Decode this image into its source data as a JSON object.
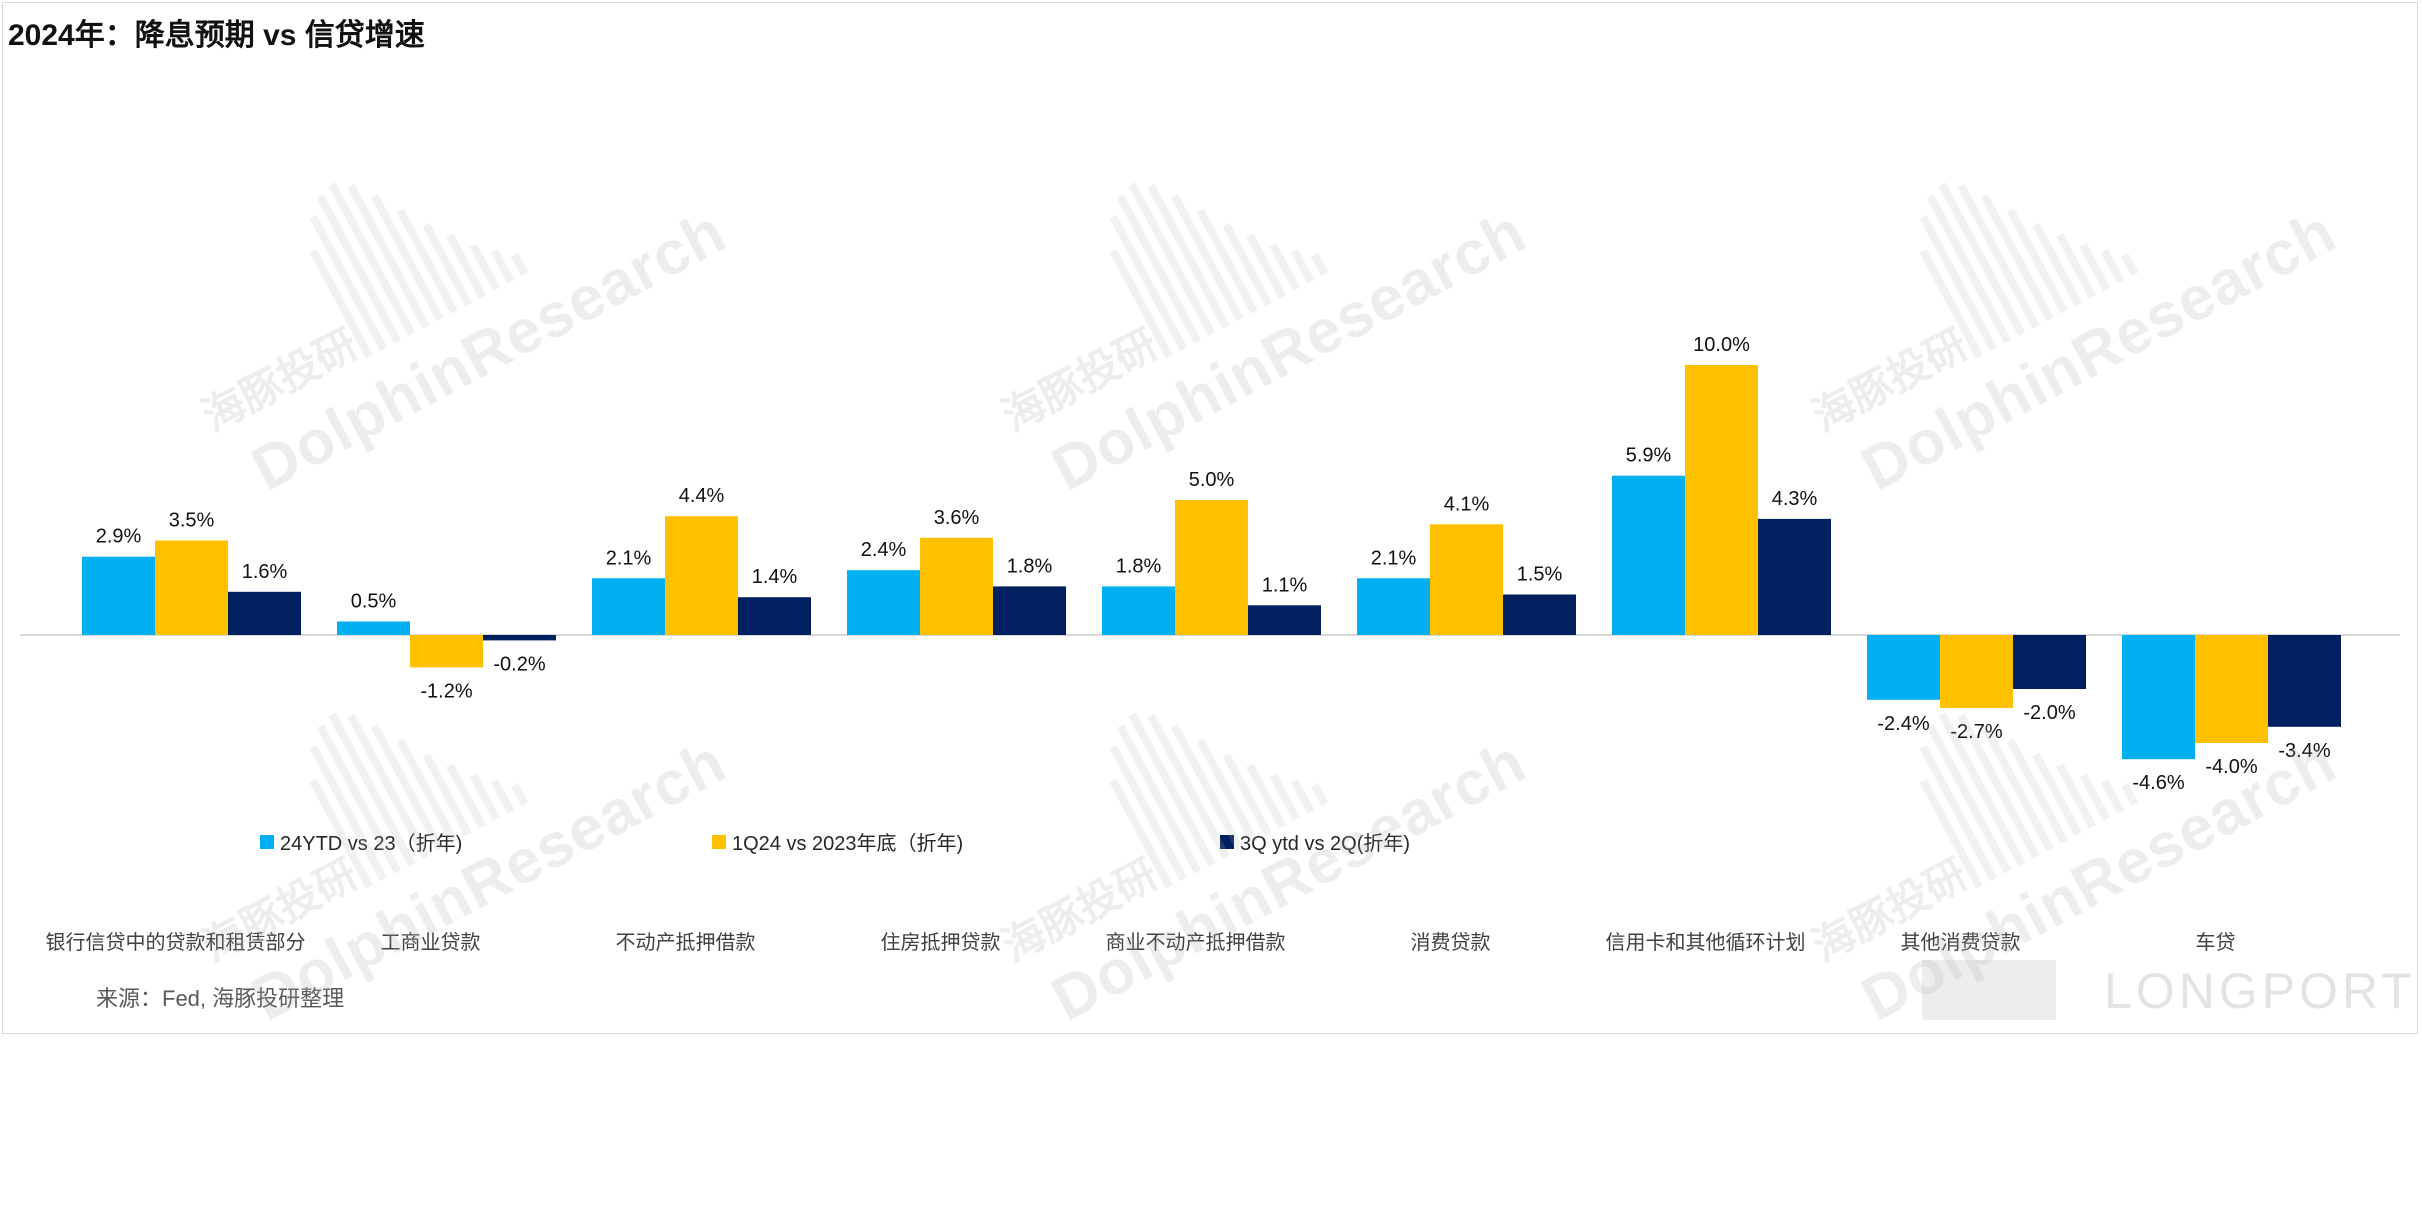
{
  "title": "2024年：降息预期 vs 信贷增速",
  "source": "来源：Fed, 海豚投研整理",
  "watermark": {
    "en": "DolphinResearch",
    "cn": "海豚投研",
    "brand": "LONGPORT"
  },
  "colors": {
    "series_1": "#00b0f0",
    "series_2": "#ffc000",
    "series_3": "#002060",
    "axis": "#d9d9d9"
  },
  "chart_data": {
    "type": "bar",
    "categories": [
      "银行信贷中的贷款和租赁部分",
      "工商业贷款",
      "不动产抵押借款",
      "住房抵押贷款",
      "商业不动产抵押借款",
      "消费贷款",
      "信用卡和其他循环计划",
      "其他消费贷款",
      "车贷"
    ],
    "series": [
      {
        "name": "24YTD vs 23（折年)",
        "values": [
          2.9,
          0.5,
          2.1,
          2.4,
          1.8,
          2.1,
          5.9,
          -2.4,
          -4.6
        ]
      },
      {
        "name": "1Q24 vs 2023年底（折年)",
        "values": [
          3.5,
          -1.2,
          4.4,
          3.6,
          5.0,
          4.1,
          10.0,
          -2.7,
          -4.0
        ]
      },
      {
        "name": "3Q ytd vs 2Q(折年)",
        "values": [
          1.6,
          -0.2,
          1.4,
          1.8,
          1.1,
          1.5,
          4.3,
          -2.0,
          -3.4
        ]
      }
    ],
    "unit": "%",
    "ylim": [
      -5.5,
      11
    ],
    "data_labels": true,
    "legend_position": "bottom-left",
    "grid": false
  }
}
